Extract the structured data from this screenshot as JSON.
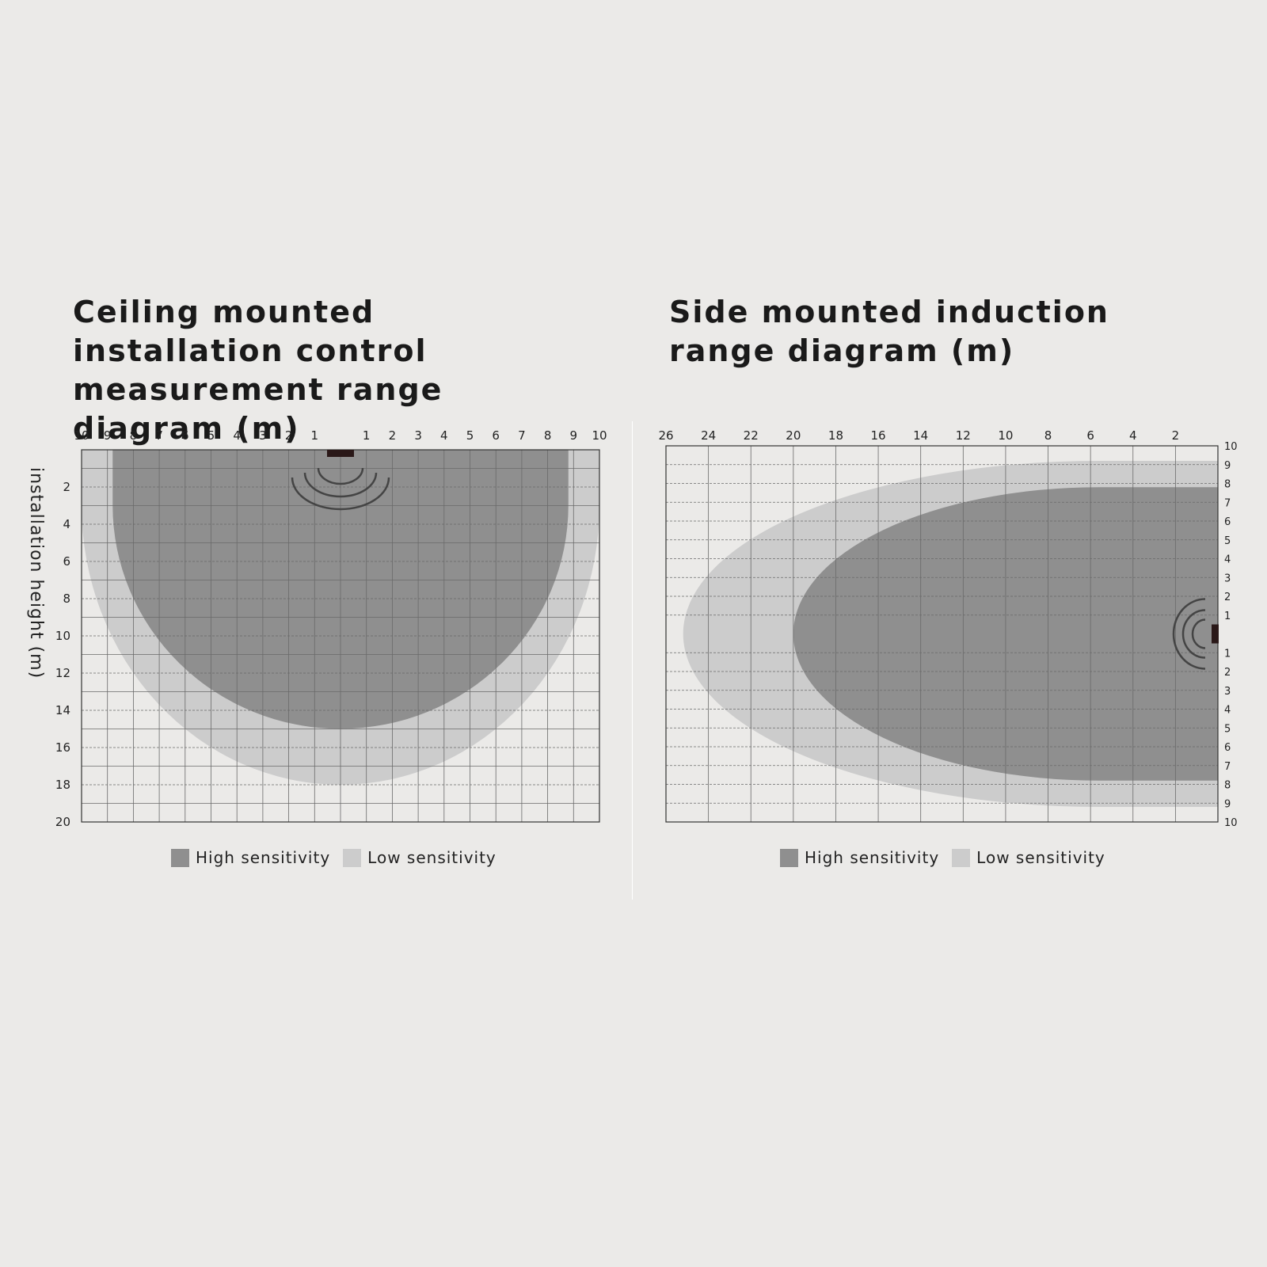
{
  "colors": {
    "background": "#ebeae8",
    "high": "#8f8f8f",
    "low": "#cccccc",
    "grid": "#6a6a6a",
    "sensor": "#2a1818"
  },
  "ceiling": {
    "title": "Ceiling mounted installation control measurement range diagram (m)",
    "ylabel": "installation height (m)",
    "x_ticks": [
      "10",
      "9",
      "8",
      "7",
      "6",
      "5",
      "4",
      "3",
      "2",
      "1",
      "1",
      "2",
      "3",
      "4",
      "5",
      "6",
      "7",
      "8",
      "9",
      "10"
    ],
    "y_ticks": [
      "2",
      "4",
      "6",
      "8",
      "10",
      "12",
      "14",
      "16",
      "18",
      "20"
    ],
    "legend": [
      {
        "label": "High sensitivity",
        "color": "#8f8f8f"
      },
      {
        "label": "Low sensitivity",
        "color": "#cccccc"
      }
    ]
  },
  "side": {
    "title": "Side mounted induction range diagram (m)",
    "x_ticks": [
      "26",
      "24",
      "22",
      "20",
      "18",
      "16",
      "14",
      "12",
      "10",
      "8",
      "6",
      "4",
      "2"
    ],
    "y_ticks_top": [
      "10",
      "9",
      "8",
      "7",
      "6",
      "5",
      "4",
      "3",
      "2",
      "1"
    ],
    "y_ticks_bottom": [
      "1",
      "2",
      "3",
      "4",
      "5",
      "6",
      "7",
      "8",
      "9",
      "10"
    ],
    "legend": [
      {
        "label": "High sensitivity",
        "color": "#8f8f8f"
      },
      {
        "label": "Low sensitivity",
        "color": "#cccccc"
      }
    ]
  },
  "chart_data": [
    {
      "type": "diagram",
      "title": "Ceiling mounted installation control measurement range diagram (m)",
      "ylabel": "installation height (m)",
      "xlim": [
        -10,
        10
      ],
      "ylim": [
        0,
        20
      ],
      "grid": true,
      "legend_position": "bottom",
      "series": [
        {
          "name": "Low sensitivity",
          "shape": "half-ellipse",
          "x_range": [
            -10,
            10
          ],
          "depth": 18
        },
        {
          "name": "High sensitivity",
          "shape": "half-ellipse",
          "x_range": [
            -8.8,
            8.8
          ],
          "depth": 15
        }
      ]
    },
    {
      "type": "diagram",
      "title": "Side mounted induction range diagram (m)",
      "xlim": [
        26,
        0
      ],
      "ylim": [
        -10,
        10
      ],
      "grid": true,
      "legend_position": "bottom",
      "series": [
        {
          "name": "Low sensitivity",
          "shape": "half-ellipse",
          "reach": 25.2,
          "y_range": [
            -9.2,
            9.2
          ]
        },
        {
          "name": "High sensitivity",
          "shape": "half-ellipse",
          "reach": 20,
          "y_range": [
            -7.8,
            7.8
          ]
        }
      ]
    }
  ]
}
